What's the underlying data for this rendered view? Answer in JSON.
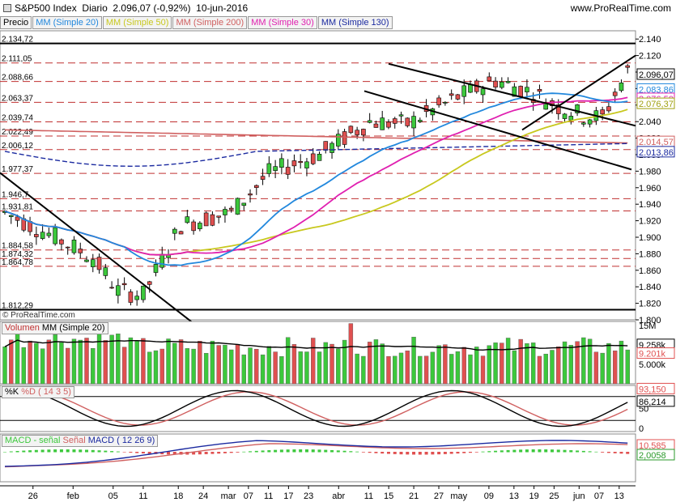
{
  "header": {
    "title": "S&P500 Index",
    "period": "Diario",
    "last_value": "2.096,07 (-0,92%)",
    "date": "10-jun-2016",
    "site": "www.ProRealTime.com",
    "watermark": "© ProRealTime.com"
  },
  "legend": {
    "price": "Precio",
    "ma20": "MM (Simple 20)",
    "ma50": "MM (Simple 50)",
    "ma200": "MM (Simple 200)",
    "ma30": "MM (Simple 30)",
    "ma130": "MM (Simple 130)"
  },
  "colors": {
    "up": "#3cc83c",
    "down": "#e05050",
    "ma20": "#2288dd",
    "ma50": "#c8c81e",
    "ma200": "#d06060",
    "ma30": "#e020b0",
    "ma130": "#1b2aa0",
    "hline": "#c03030"
  },
  "price_levels_left": [
    "2.134,72",
    "2.111,05",
    "2.088,66",
    "2.063,37",
    "2.039,74",
    "2.022,49",
    "2.006,12",
    "1.977,37",
    "1.946,7",
    "1.931,81",
    "1.884,58",
    "1.874,32",
    "1.864,78",
    "1.812,29"
  ],
  "price_axis_labels": [
    "2.140",
    "2.120",
    "2.100",
    "2.080",
    "2.060",
    "2.040",
    "2.020",
    "2.000",
    "1.980",
    "1.960",
    "1.940",
    "1.920",
    "1.900",
    "1.880",
    "1.860",
    "1.840",
    "1.820",
    "1.800"
  ],
  "right_badges": {
    "close": "2.096,07",
    "ma20": "2.083,86",
    "ma30": "2.076,50",
    "ma50": "2.076,37",
    "ma200": "2.014,57",
    "ma130": "2.013,86"
  },
  "volume": {
    "label": "Volumen",
    "ma_label": "MM (Simple 20)",
    "axis": [
      "15M",
      "10M",
      "5.000k"
    ],
    "badge_ma": "9.258k",
    "badge_vol": "9.201k"
  },
  "stoch": {
    "label": "%K",
    "label2": "%D ( 14 3 5)",
    "axis": [
      "100",
      "50",
      "0"
    ],
    "badge_top": "93,150",
    "badge_k": "86,214"
  },
  "macd": {
    "label": "MACD - señal",
    "label_signal": "Señal",
    "label_macd": "MACD ( 12 26 9)",
    "badge1": "10,585",
    "badge2": "2,0058"
  },
  "date_axis": [
    "26",
    "feb",
    "05",
    "11",
    "18",
    "24",
    "mar",
    "07",
    "11",
    "17",
    "23",
    "abr",
    "11",
    "15",
    "21",
    "27",
    "may",
    "09",
    "13",
    "19",
    "25",
    "jun",
    "07",
    "13"
  ],
  "chart_data": {
    "type": "line",
    "title": "S&P500 Index",
    "x": [
      "2016-01-26",
      "2016-02-01",
      "2016-02-05",
      "2016-02-11",
      "2016-02-18",
      "2016-02-24",
      "2016-03-01",
      "2016-03-07",
      "2016-03-11",
      "2016-03-17",
      "2016-03-23",
      "2016-04-01",
      "2016-04-11",
      "2016-04-15",
      "2016-04-21",
      "2016-04-27",
      "2016-05-02",
      "2016-05-09",
      "2016-05-13",
      "2016-05-19",
      "2016-05-25",
      "2016-06-01",
      "2016-06-07",
      "2016-06-10"
    ],
    "series": [
      {
        "name": "Precio",
        "values": [
          1903,
          1939,
          1880,
          1829,
          1917,
          1929,
          1978,
          2002,
          2022,
          2040,
          2036,
          2072,
          2041,
          2081,
          2091,
          2075,
          2081,
          2058,
          2047,
          2040,
          2090,
          2099,
          2112,
          2096
        ]
      },
      {
        "name": "MM (Simple 20)",
        "values": [
          1950,
          1915,
          1898,
          1885,
          1880,
          1895,
          1925,
          1955,
          1985,
          2010,
          2025,
          2035,
          2045,
          2060,
          2072,
          2078,
          2080,
          2075,
          2065,
          2055,
          2058,
          2070,
          2080,
          2084
        ]
      },
      {
        "name": "MM (Simple 50)",
        "values": [
          2010,
          1975,
          1950,
          1932,
          1925,
          1922,
          1925,
          1930,
          1940,
          1955,
          1975,
          2000,
          2020,
          2035,
          2048,
          2055,
          2058,
          2060,
          2060,
          2060,
          2062,
          2068,
          2074,
          2076
        ]
      }
    ],
    "ylim": [
      1800,
      2150
    ]
  }
}
